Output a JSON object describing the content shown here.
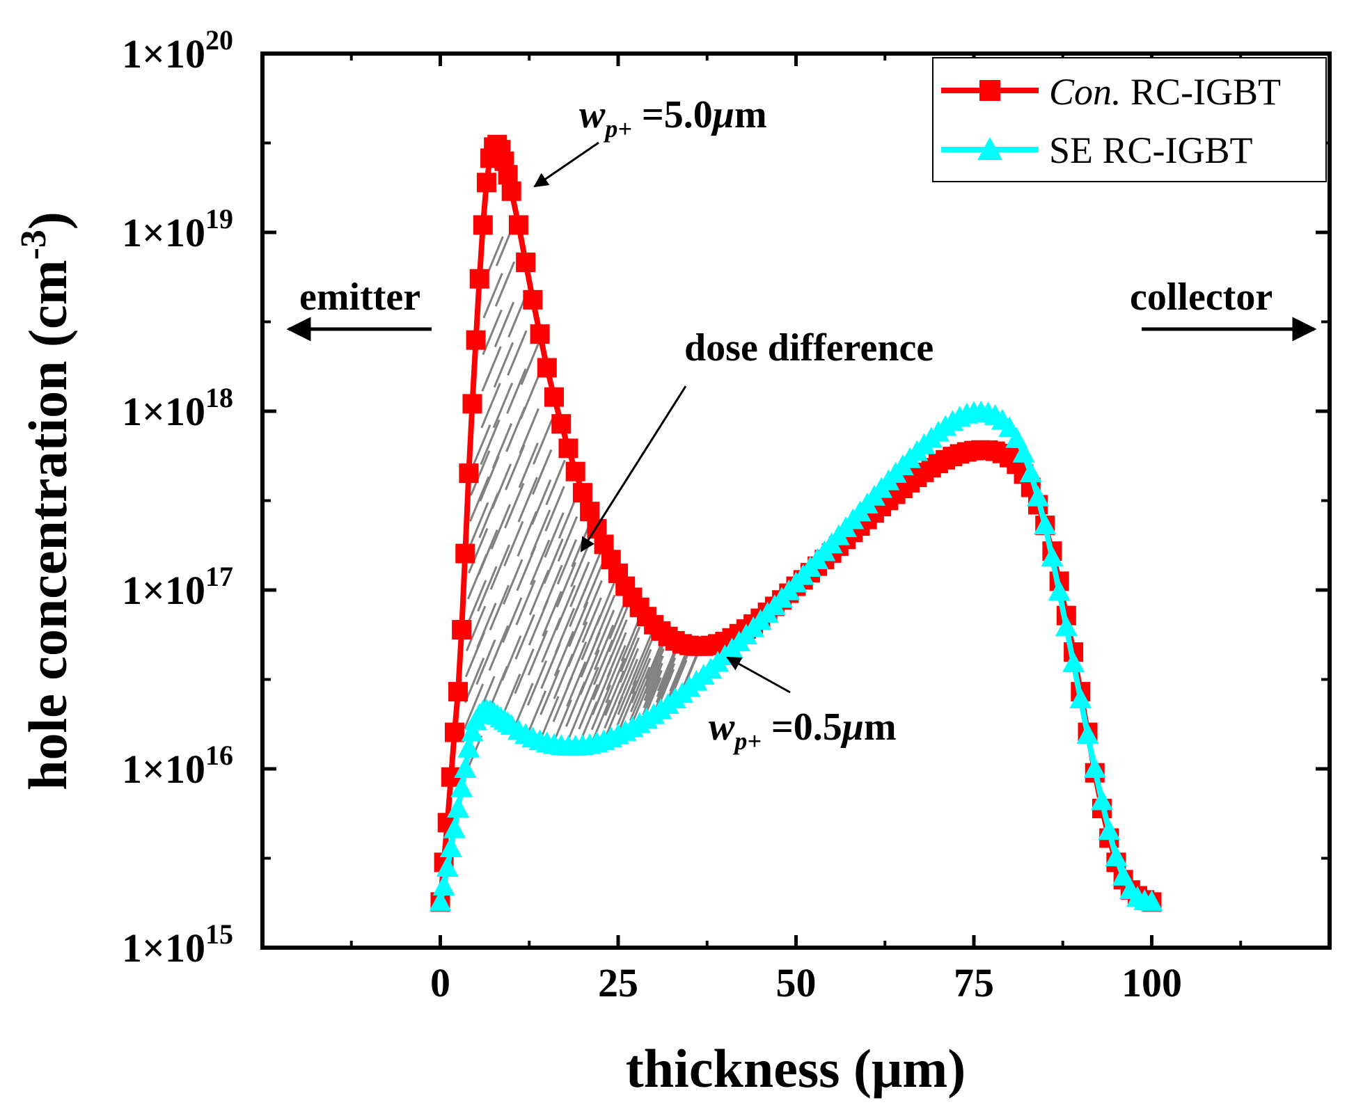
{
  "chart_data": {
    "type": "line",
    "xlabel": "thickness (μm)",
    "ylabel": "hole concentration (cm",
    "ylabel_exponent": "-3",
    "ylabel_close": ")",
    "y_scale": "log",
    "xlim": [
      -25,
      125
    ],
    "ylim": [
      1000000000000000.0,
      1e+20
    ],
    "x_ticks": [
      0,
      25,
      50,
      75,
      100
    ],
    "x_tick_labels": [
      "0",
      "25",
      "50",
      "75",
      "100"
    ],
    "y_ticks": [
      1000000000000000.0,
      1e+16,
      1e+17,
      1e+18,
      1e+19,
      1e+20
    ],
    "y_tick_labels": [
      {
        "base": "1×10",
        "exp": "15"
      },
      {
        "base": "1×10",
        "exp": "16"
      },
      {
        "base": "1×10",
        "exp": "17"
      },
      {
        "base": "1×10",
        "exp": "18"
      },
      {
        "base": "1×10",
        "exp": "19"
      },
      {
        "base": "1×10",
        "exp": "20"
      }
    ],
    "legend_position": "top-right",
    "series": [
      {
        "name": "Con. RC-IGBT",
        "name_italic": "Con.",
        "name_rest": " RC-IGBT",
        "color": "#ff0000",
        "marker": "square",
        "x": [
          0,
          0.5,
          1,
          1.5,
          2,
          2.5,
          3,
          3.5,
          4,
          4.5,
          5,
          5.5,
          6,
          6.5,
          7,
          7.5,
          8,
          8.5,
          9,
          9.5,
          10,
          11,
          12,
          13,
          14,
          15,
          16,
          17,
          18,
          19,
          20,
          21,
          22,
          23,
          24,
          25,
          26,
          27,
          28,
          29,
          30,
          31,
          32,
          33,
          34,
          35,
          36,
          37,
          38,
          39,
          40,
          41,
          42,
          43,
          44,
          45,
          46,
          47,
          48,
          49,
          50,
          51,
          52,
          53,
          54,
          55,
          56,
          57,
          58,
          59,
          60,
          61,
          62,
          63,
          64,
          65,
          66,
          67,
          68,
          69,
          70,
          71,
          72,
          73,
          74,
          75,
          76,
          77,
          78,
          79,
          80,
          81,
          82,
          83,
          84,
          85,
          86,
          87,
          88,
          89,
          90,
          91,
          92,
          93,
          94,
          95,
          96,
          97,
          98,
          99,
          100
        ],
        "y": [
          1800000000000000.0,
          3000000000000000.0,
          5000000000000000.0,
          9000000000000000.0,
          1.6e+16,
          2.7e+16,
          6e+16,
          1.6e+17,
          4.5e+17,
          1.1e+18,
          2.5e+18,
          5.5e+18,
          1.1e+19,
          1.9e+19,
          2.6e+19,
          3e+19,
          3.1e+19,
          2.9e+19,
          2.5e+19,
          2.1e+19,
          1.7e+19,
          1.1e+19,
          6.8e+18,
          4.2e+18,
          2.7e+18,
          1.75e+18,
          1.2e+18,
          8.5e+17,
          6.2e+17,
          4.6e+17,
          3.5e+17,
          2.75e+17,
          2.2e+17,
          1.8e+17,
          1.48e+17,
          1.24e+17,
          1.05e+17,
          9.1e+16,
          8e+16,
          7.1e+16,
          6.4e+16,
          5.9e+16,
          5.5e+16,
          5.2e+16,
          5e+16,
          4.9e+16,
          4.85e+16,
          4.85e+16,
          4.9e+16,
          5e+16,
          5.15e+16,
          5.4e+16,
          5.7e+16,
          6.05e+16,
          6.45e+16,
          6.95e+16,
          7.5e+16,
          8.1e+16,
          8.8e+16,
          9.6e+16,
          1.05e+17,
          1.14e+17,
          1.25e+17,
          1.36e+17,
          1.48e+17,
          1.61e+17,
          1.76e+17,
          1.92e+17,
          2.1e+17,
          2.28e+17,
          2.48e+17,
          2.7e+17,
          2.93e+17,
          3.17e+17,
          3.43e+17,
          3.7e+17,
          3.98e+17,
          4.27e+17,
          4.55e+17,
          4.83e+17,
          5.1e+17,
          5.35e+17,
          5.58e+17,
          5.77e+17,
          5.92e+17,
          6.02e+17,
          6.07e+17,
          6.06e+17,
          5.97e+17,
          5.8e+17,
          5.5e+17,
          5.05e+17,
          4.45e+17,
          3.75e+17,
          3e+17,
          2.3e+17,
          1.65e+17,
          1.12e+17,
          7.2e+16,
          4.5e+16,
          2.7e+16,
          1.6e+16,
          9500000000000000.0,
          6000000000000000.0,
          4100000000000000.0,
          3000000000000000.0,
          2400000000000000.0,
          2100000000000000.0,
          1950000000000000.0,
          1850000000000000.0,
          1800000000000000.0
        ]
      },
      {
        "name": "SE RC-IGBT",
        "color": "#00ffff",
        "marker": "triangle",
        "x": [
          0,
          0.5,
          1,
          1.5,
          2,
          2.5,
          3,
          3.5,
          4,
          4.5,
          5,
          5.5,
          6,
          6.5,
          7,
          7.5,
          8,
          8.5,
          9,
          9.5,
          10,
          11,
          12,
          13,
          14,
          15,
          16,
          17,
          18,
          19,
          20,
          21,
          22,
          23,
          24,
          25,
          26,
          27,
          28,
          29,
          30,
          31,
          32,
          33,
          34,
          35,
          36,
          37,
          38,
          39,
          40,
          41,
          42,
          43,
          44,
          45,
          46,
          47,
          48,
          49,
          50,
          51,
          52,
          53,
          54,
          55,
          56,
          57,
          58,
          59,
          60,
          61,
          62,
          63,
          64,
          65,
          66,
          67,
          68,
          69,
          70,
          71,
          72,
          73,
          74,
          75,
          76,
          77,
          78,
          79,
          80,
          81,
          82,
          83,
          84,
          85,
          86,
          87,
          88,
          89,
          90,
          91,
          92,
          93,
          94,
          95,
          96,
          97,
          98,
          99,
          100
        ],
        "y": [
          1800000000000000.0,
          2200000000000000.0,
          2800000000000000.0,
          3600000000000000.0,
          4600000000000000.0,
          6000000000000000.0,
          7800000000000000.0,
          1e+16,
          1.3e+16,
          1.6e+16,
          1.85e+16,
          2e+16,
          2.1e+16,
          2.12e+16,
          2.1e+16,
          2.05e+16,
          1.98e+16,
          1.92e+16,
          1.86e+16,
          1.8e+16,
          1.74e+16,
          1.63e+16,
          1.55e+16,
          1.48e+16,
          1.43e+16,
          1.39e+16,
          1.36e+16,
          1.34e+16,
          1.33e+16,
          1.33e+16,
          1.34e+16,
          1.36e+16,
          1.39e+16,
          1.43e+16,
          1.48e+16,
          1.54e+16,
          1.61e+16,
          1.69e+16,
          1.78e+16,
          1.89e+16,
          2e+16,
          2.13e+16,
          2.28e+16,
          2.45e+16,
          2.63e+16,
          2.84e+16,
          3.07e+16,
          3.32e+16,
          3.6e+16,
          3.92e+16,
          4.27e+16,
          4.66e+16,
          5.1e+16,
          5.58e+16,
          6.12e+16,
          6.72e+16,
          7.38e+16,
          8.12e+16,
          8.94e+16,
          9.85e+16,
          1.09e+17,
          1.2e+17,
          1.33e+17,
          1.47e+17,
          1.63e+17,
          1.8e+17,
          2e+17,
          2.22e+17,
          2.46e+17,
          2.72e+17,
          3.01e+17,
          3.33e+17,
          3.68e+17,
          4.06e+17,
          4.47e+17,
          4.92e+17,
          5.4e+17,
          5.92e+17,
          6.46e+17,
          7.02e+17,
          7.6e+17,
          8.17e+17,
          8.72e+17,
          9.2e+17,
          9.58e+17,
          9.8e+17,
          9.85e+17,
          9.72e+17,
          9.4e+17,
          8.85e+17,
          8.05e+17,
          7e+17,
          5.8e+17,
          4.5e+17,
          3.3e+17,
          2.3e+17,
          1.52e+17,
          9.8e+16,
          6.2e+16,
          3.9e+16,
          2.45e+16,
          1.55e+16,
          1e+16,
          6600000000000000.0,
          4500000000000000.0,
          3200000000000000.0,
          2500000000000000.0,
          2100000000000000.0,
          1900000000000000.0,
          1820000000000000.0,
          1800000000000000.0
        ]
      }
    ],
    "annotations": [
      {
        "name": "emitter",
        "text": "emitter"
      },
      {
        "name": "collector",
        "text": "collector"
      },
      {
        "name": "dose-difference",
        "text": "dose difference"
      },
      {
        "name": "wp-5",
        "w": "w",
        "sub": "p+",
        "value": " =5.0",
        "unit_mu": "μ",
        "unit_m": "m"
      },
      {
        "name": "wp-05",
        "w": "w",
        "sub": "p+",
        "value": " =0.5",
        "unit_mu": "μ",
        "unit_m": "m"
      }
    ]
  }
}
